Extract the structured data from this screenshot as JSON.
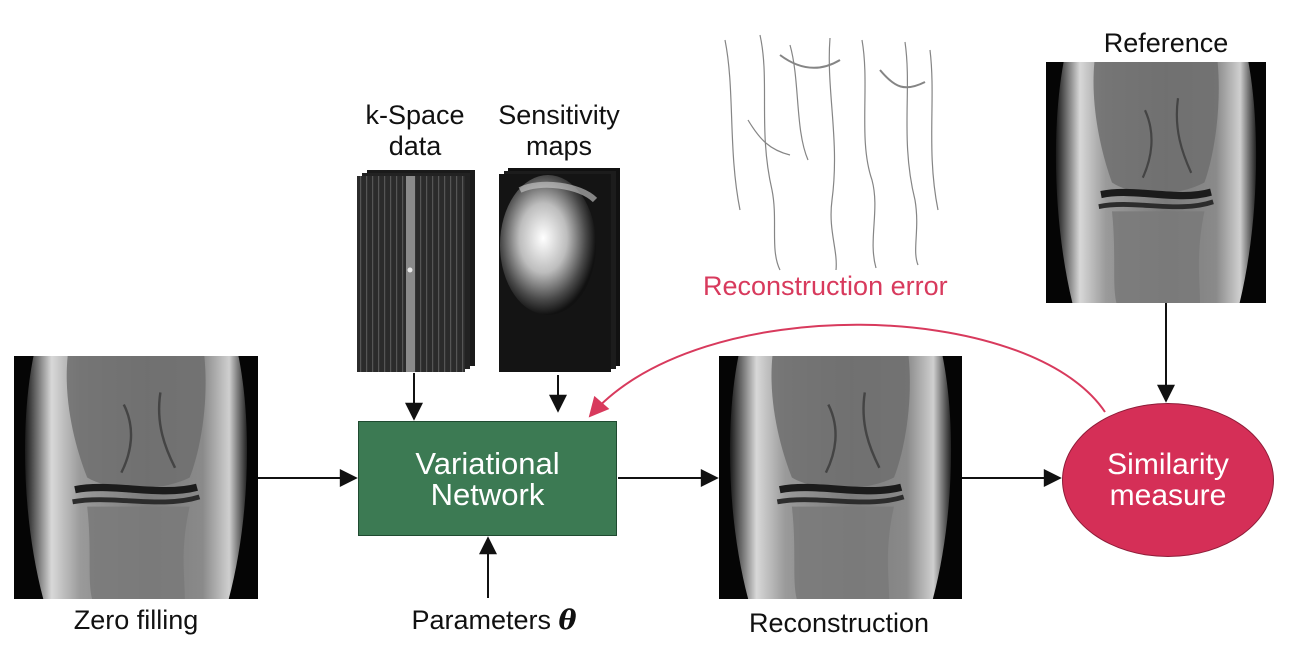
{
  "labels": {
    "kspace_line1": "k-Space",
    "kspace_line2": "data",
    "sens_line1": "Sensitivity",
    "sens_line2": "maps",
    "reference": "Reference",
    "zero_filling": "Zero filling",
    "parameters": "Parameters",
    "theta": "θ",
    "reconstruction": "Reconstruction",
    "reconstruction_error": "Reconstruction error"
  },
  "boxes": {
    "variational_line1": "Variational",
    "variational_line2": "Network",
    "similarity_line1": "Similarity",
    "similarity_line2": "measure"
  },
  "colors": {
    "network_fill": "#3c7a53",
    "similarity_fill": "#d52f57",
    "error_arrow": "#d83a5d",
    "arrow": "#111111"
  }
}
